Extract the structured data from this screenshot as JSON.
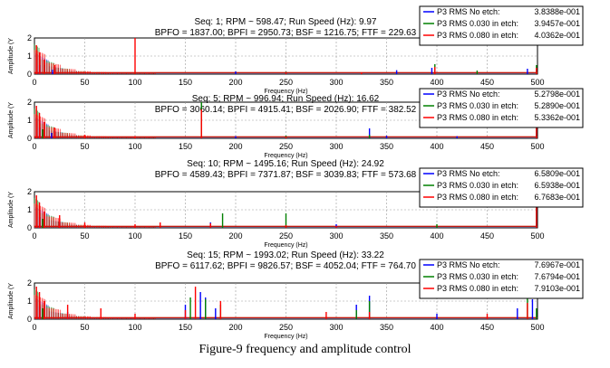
{
  "figure_caption": "Figure-9 frequency and amplitude control",
  "colors": {
    "no_etch": "#0000ff",
    "etch_030": "#008000",
    "etch_080": "#ff0000",
    "grid": "#9a9a9a"
  },
  "chart_data": [
    {
      "type": "line",
      "title": "Seq: 1; RPM ~ 598.47; Run Speed (Hz): 9.97",
      "subtitle": "BPFO = 1837.00; BPFI = 2950.73; BSF = 1216.75; FTF = 229.63",
      "xlabel": "Frequency (Hz)",
      "ylabel": "Amplitude (Y",
      "xlim": [
        0,
        500
      ],
      "ylim": [
        0,
        2
      ],
      "xticks": [
        "0",
        "50",
        "100",
        "150",
        "200",
        "250",
        "300",
        "350",
        "400",
        "450",
        "500"
      ],
      "yticks": [
        "0",
        "1",
        "2"
      ],
      "grid": true,
      "legend_position": "top-right",
      "legend": [
        {
          "label": "P3 RMS No etch:",
          "value": "3.8388e-001",
          "color": "#0000ff"
        },
        {
          "label": "P3 RMS 0.030 in etch:",
          "value": "3.9457e-001",
          "color": "#008000"
        },
        {
          "label": "P3 RMS 0.080 in etch:",
          "value": "4.0362e-001",
          "color": "#ff0000"
        }
      ],
      "series": [
        {
          "values": [
            [
              5,
              0.5
            ],
            [
              18,
              0.25
            ],
            [
              200,
              0.15
            ],
            [
              250,
              0.12
            ],
            [
              360,
              0.22
            ],
            [
              395,
              0.35
            ],
            [
              490,
              0.3
            ]
          ]
        },
        {
          "values": [
            [
              10,
              0.5
            ],
            [
              20,
              0.3
            ],
            [
              100,
              0.1
            ],
            [
              250,
              0.14
            ],
            [
              398,
              0.55
            ],
            [
              440,
              0.2
            ],
            [
              499,
              0.5
            ]
          ]
        },
        {
          "values": [
            [
              2,
              1.6
            ],
            [
              5,
              1.2
            ],
            [
              10,
              0.8
            ],
            [
              20,
              0.5
            ],
            [
              100,
              2.0
            ],
            [
              250,
              0.12
            ],
            [
              325,
              0.1
            ],
            [
              398,
              0.4
            ],
            [
              499,
              0.35
            ]
          ]
        }
      ]
    },
    {
      "type": "line",
      "title": "Seq: 5; RPM ~ 996.94; Run Speed (Hz): 16.62",
      "subtitle": "BPFO = 3060.14; BPFI = 4915.41; BSF = 2026.90; FTF = 382.52",
      "xlabel": "Frequency (Hz)",
      "ylabel": "Amplitude (Y",
      "xlim": [
        0,
        500
      ],
      "ylim": [
        0,
        2
      ],
      "xticks": [
        "0",
        "50",
        "100",
        "150",
        "200",
        "250",
        "300",
        "350",
        "400",
        "450",
        "500"
      ],
      "yticks": [
        "0",
        "1",
        "2"
      ],
      "grid": true,
      "legend_position": "top-right",
      "legend": [
        {
          "label": "P3 RMS No etch:",
          "value": "5.2798e-001",
          "color": "#0000ff"
        },
        {
          "label": "P3 RMS 0.030 in etch:",
          "value": "5.2890e-001",
          "color": "#008000"
        },
        {
          "label": "P3 RMS 0.080 in etch:",
          "value": "5.3362e-001",
          "color": "#ff0000"
        }
      ],
      "series": [
        {
          "values": [
            [
              5,
              0.6
            ],
            [
              17,
              0.3
            ],
            [
              200,
              0.12
            ],
            [
              333,
              0.55
            ],
            [
              350,
              0.15
            ],
            [
              420,
              0.12
            ],
            [
              499,
              1.0
            ]
          ]
        },
        {
          "values": [
            [
              8,
              0.5
            ],
            [
              166,
              2.0
            ],
            [
              250,
              0.15
            ],
            [
              333,
              0.2
            ],
            [
              499,
              0.9
            ]
          ]
        },
        {
          "values": [
            [
              2,
              1.8
            ],
            [
              5,
              1.4
            ],
            [
              10,
              0.9
            ],
            [
              20,
              0.6
            ],
            [
              50,
              0.2
            ],
            [
              100,
              0.12
            ],
            [
              166,
              1.6
            ],
            [
              250,
              0.1
            ],
            [
              499,
              1.8
            ]
          ]
        }
      ]
    },
    {
      "type": "line",
      "title": "Seq: 10; RPM ~ 1495.16; Run Speed (Hz): 24.92",
      "subtitle": "BPFO = 4589.43; BPFI = 7371.87; BSF = 3039.83; FTF = 573.68",
      "xlabel": "Frequency (Hz)",
      "ylabel": "Amplitude (Y",
      "xlim": [
        0,
        500
      ],
      "ylim": [
        0,
        2
      ],
      "xticks": [
        "0",
        "50",
        "100",
        "150",
        "200",
        "250",
        "300",
        "350",
        "400",
        "450",
        "500"
      ],
      "yticks": [
        "0",
        "1",
        "2"
      ],
      "grid": true,
      "legend_position": "top-right",
      "legend": [
        {
          "label": "P3 RMS No etch:",
          "value": "6.5809e-001",
          "color": "#0000ff"
        },
        {
          "label": "P3 RMS 0.030 in etch:",
          "value": "6.5938e-001",
          "color": "#008000"
        },
        {
          "label": "P3 RMS 0.080 in etch:",
          "value": "6.7683e-001",
          "color": "#ff0000"
        }
      ],
      "series": [
        {
          "values": [
            [
              5,
              0.6
            ],
            [
              25,
              0.3
            ],
            [
              175,
              0.3
            ],
            [
              300,
              0.2
            ],
            [
              499,
              1.5
            ]
          ]
        },
        {
          "values": [
            [
              8,
              0.5
            ],
            [
              187,
              0.8
            ],
            [
              250,
              0.8
            ],
            [
              400,
              0.2
            ],
            [
              499,
              1.8
            ]
          ]
        },
        {
          "values": [
            [
              2,
              1.8
            ],
            [
              5,
              1.4
            ],
            [
              10,
              0.9
            ],
            [
              25,
              0.7
            ],
            [
              50,
              0.3
            ],
            [
              100,
              0.2
            ],
            [
              125,
              0.3
            ],
            [
              175,
              0.25
            ],
            [
              250,
              0.15
            ],
            [
              300,
              0.1
            ],
            [
              499,
              2.0
            ]
          ]
        }
      ]
    },
    {
      "type": "line",
      "title": "Seq: 15; RPM ~ 1993.02; Run Speed (Hz): 33.22",
      "subtitle": "BPFO = 6117.62; BPFI = 9826.57; BSF = 4052.04; FTF = 764.70",
      "xlabel": "Frequency (Hz)",
      "ylabel": "Amplitude (Y",
      "xlim": [
        0,
        500
      ],
      "ylim": [
        0,
        2
      ],
      "xticks": [
        "0",
        "50",
        "100",
        "150",
        "200",
        "250",
        "300",
        "350",
        "400",
        "450",
        "500"
      ],
      "yticks": [
        "0",
        "1",
        "2"
      ],
      "grid": true,
      "legend_position": "top-right",
      "legend": [
        {
          "label": "P3 RMS No etch:",
          "value": "7.6967e-001",
          "color": "#0000ff"
        },
        {
          "label": "P3 RMS 0.030 in etch:",
          "value": "7.6794e-001",
          "color": "#008000"
        },
        {
          "label": "P3 RMS 0.080 in etch:",
          "value": "7.9103e-001",
          "color": "#ff0000"
        }
      ],
      "series": [
        {
          "values": [
            [
              5,
              0.7
            ],
            [
              33,
              0.4
            ],
            [
              150,
              0.8
            ],
            [
              165,
              1.5
            ],
            [
              170,
              1.2
            ],
            [
              180,
              0.6
            ],
            [
              320,
              0.8
            ],
            [
              333,
              1.3
            ],
            [
              400,
              0.3
            ],
            [
              480,
              0.6
            ],
            [
              495,
              1.1
            ]
          ]
        },
        {
          "values": [
            [
              8,
              0.6
            ],
            [
              155,
              1.2
            ],
            [
              170,
              1.1
            ],
            [
              185,
              0.8
            ],
            [
              320,
              0.5
            ],
            [
              333,
              1.0
            ],
            [
              490,
              1.8
            ],
            [
              499,
              0.6
            ]
          ]
        },
        {
          "values": [
            [
              2,
              1.8
            ],
            [
              5,
              1.5
            ],
            [
              10,
              1.0
            ],
            [
              33,
              0.8
            ],
            [
              66,
              0.6
            ],
            [
              100,
              0.3
            ],
            [
              150,
              0.5
            ],
            [
              160,
              1.8
            ],
            [
              185,
              1.0
            ],
            [
              290,
              0.4
            ],
            [
              333,
              0.4
            ],
            [
              450,
              0.3
            ],
            [
              490,
              0.9
            ]
          ]
        }
      ]
    }
  ]
}
